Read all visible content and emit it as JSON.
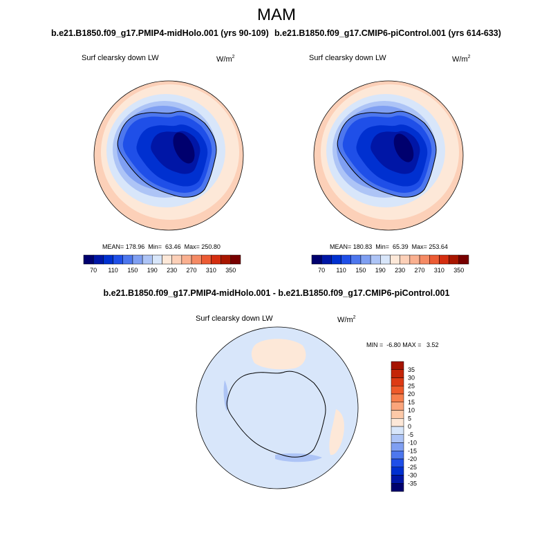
{
  "title": "MAM",
  "panels": [
    {
      "run_label": "b.e21.B1850.f09_g17.PMIP4-midHolo.001 (yrs 90-109)",
      "variable": "Surf clearsky down LW",
      "units_base": "W/m",
      "units_exp": "2",
      "stats": "MEAN= 178.96  Min=  63.46  Max= 250.80"
    },
    {
      "run_label": "b.e21.B1850.f09_g17.CMIP6-piControl.001 (yrs 614-633)",
      "variable": "Surf clearsky down LW",
      "units_base": "W/m",
      "units_exp": "2",
      "stats": "MEAN= 180.83  Min=  65.39  Max= 253.64"
    }
  ],
  "difference": {
    "title": "b.e21.B1850.f09_g17.PMIP4-midHolo.001 - b.e21.B1850.f09_g17.CMIP6-piControl.001",
    "variable": "Surf clearsky down LW",
    "units_base": "W/m",
    "units_exp": "2",
    "stats": "MIN =  -6.80 MAX =   3.52"
  },
  "abs_colorbar": {
    "colors": [
      "#00006e",
      "#0016a6",
      "#0030d0",
      "#1f4fe8",
      "#4d77ee",
      "#7f9ff2",
      "#adc4f6",
      "#d8e6fa",
      "#fde8d8",
      "#fcd0b8",
      "#fab090",
      "#f58a64",
      "#ec5b34",
      "#d42e10",
      "#a81600",
      "#780000"
    ],
    "tick_labels": [
      "70",
      "110",
      "150",
      "190",
      "230",
      "270",
      "310",
      "350"
    ]
  },
  "diff_colorbar": {
    "colors_top_to_bottom": [
      "#a51300",
      "#c42508",
      "#dd3a14",
      "#ef5a2a",
      "#f77f4d",
      "#fba57c",
      "#fdc9a8",
      "#fde8d8",
      "#d8e6fa",
      "#adc4f6",
      "#7f9ff2",
      "#4d77ee",
      "#1f4fe8",
      "#0030d0",
      "#0016a6",
      "#00006e"
    ],
    "tick_labels": [
      "35",
      "30",
      "25",
      "20",
      "15",
      "10",
      "5",
      "0",
      "-5",
      "-10",
      "-15",
      "-20",
      "-25",
      "-30",
      "-35"
    ]
  }
}
